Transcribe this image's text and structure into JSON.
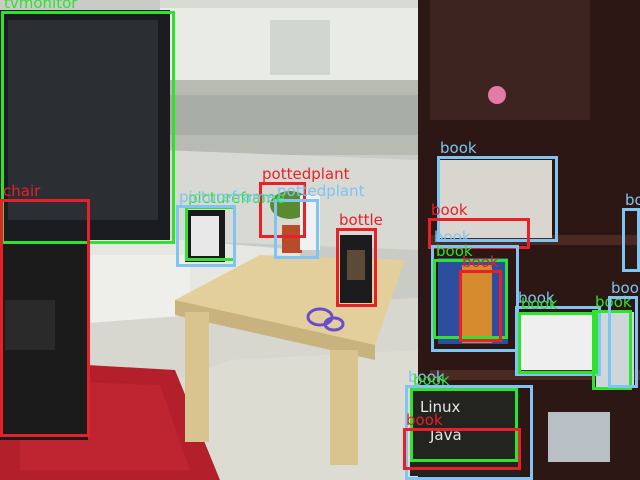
{
  "scene": {
    "book_spine_text": [
      "Linux",
      "Java"
    ]
  },
  "detections": [
    {
      "label": "tvmonitor",
      "color": "green"
    },
    {
      "label": "chair",
      "color": "red"
    },
    {
      "label": "pottedplant",
      "color": "red"
    },
    {
      "label": "pottedplant",
      "color": "blue"
    },
    {
      "label": "pictureframe",
      "color": "green"
    },
    {
      "label": "pictureframe",
      "color": "blue"
    },
    {
      "label": "bottle",
      "color": "red"
    },
    {
      "label": "book",
      "color": "blue"
    },
    {
      "label": "book",
      "color": "red"
    },
    {
      "label": "book",
      "color": "blue"
    },
    {
      "label": "book",
      "color": "green"
    },
    {
      "label": "book",
      "color": "red"
    },
    {
      "label": "book",
      "color": "blue"
    },
    {
      "label": "book",
      "color": "green"
    },
    {
      "label": "book",
      "color": "green"
    },
    {
      "label": "book",
      "color": "blue"
    },
    {
      "label": "book",
      "color": "blue"
    },
    {
      "label": "book",
      "color": "green"
    },
    {
      "label": "book",
      "color": "red"
    },
    {
      "label": "book",
      "color": "blue"
    }
  ]
}
